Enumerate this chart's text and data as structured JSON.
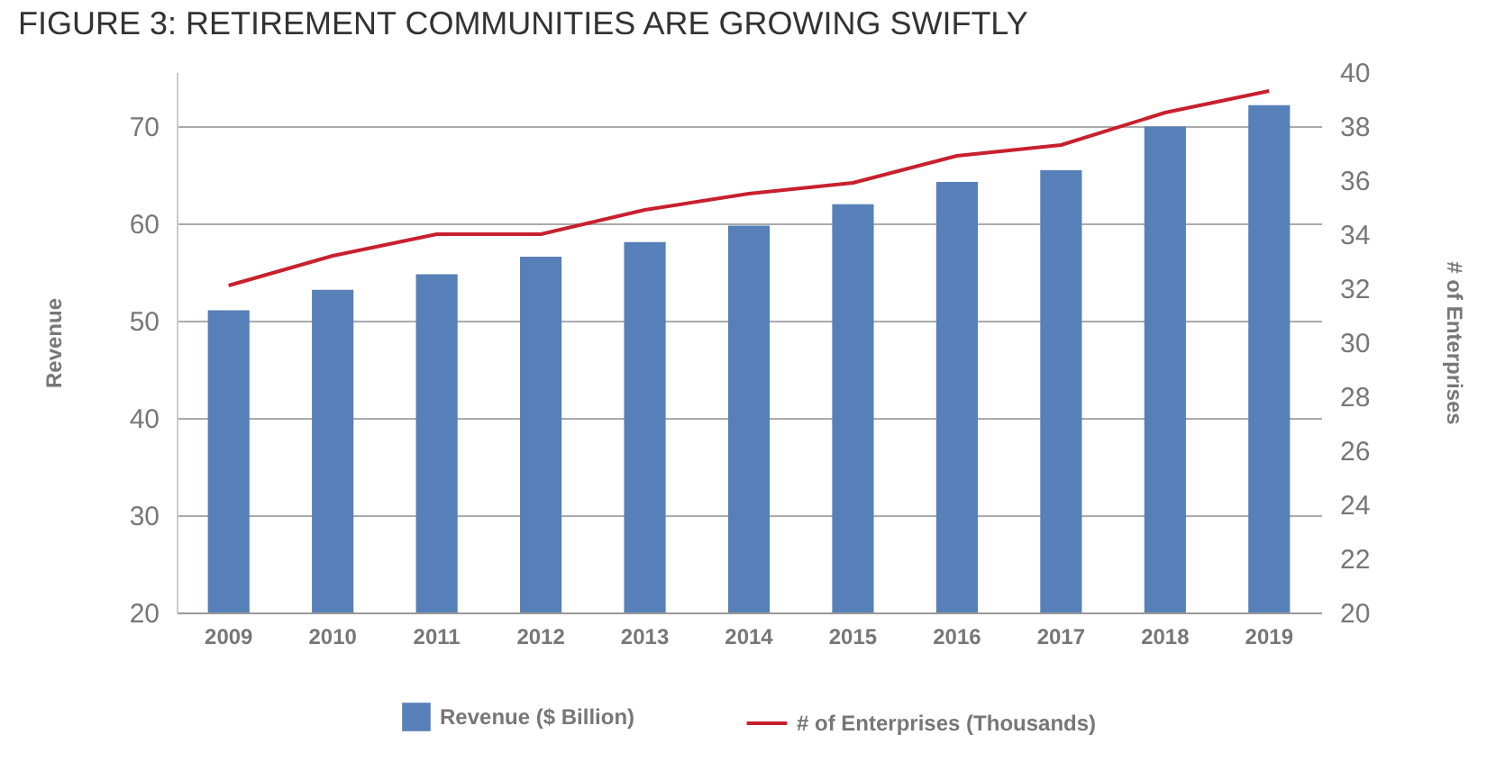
{
  "chart_data": {
    "type": "bar",
    "title": "FIGURE 3: RETIREMENT COMMUNITIES ARE GROWING SWIFTLY",
    "ylabel": "Revenue",
    "y2label": "# of Enterprises",
    "categories": [
      "2009",
      "2010",
      "2011",
      "2012",
      "2013",
      "2014",
      "2015",
      "2016",
      "2017",
      "2018",
      "2019"
    ],
    "series": [
      {
        "name": "Revenue ($ Billion)",
        "color": "#5880b8",
        "values": [
          51.1,
          53.2,
          54.8,
          56.6,
          58.1,
          59.8,
          62.0,
          64.3,
          65.5,
          70.0,
          72.2
        ]
      },
      {
        "name": "# of Enterprises (Thousands)",
        "type": "line",
        "axis": "y2",
        "color": "#c8202e",
        "values": [
          32.1,
          33.2,
          34.0,
          34.0,
          34.9,
          35.5,
          35.9,
          36.9,
          37.3,
          38.5,
          39.3
        ]
      }
    ],
    "ylim": [
      20,
      75.6
    ],
    "yticks": [
      20,
      30,
      40,
      50,
      60,
      70
    ],
    "y2lim": [
      20,
      40
    ],
    "y2ticks": [
      20,
      22,
      24,
      26,
      28,
      30,
      32,
      34,
      36,
      38,
      40
    ],
    "grid": "y",
    "legend": "bottom"
  }
}
